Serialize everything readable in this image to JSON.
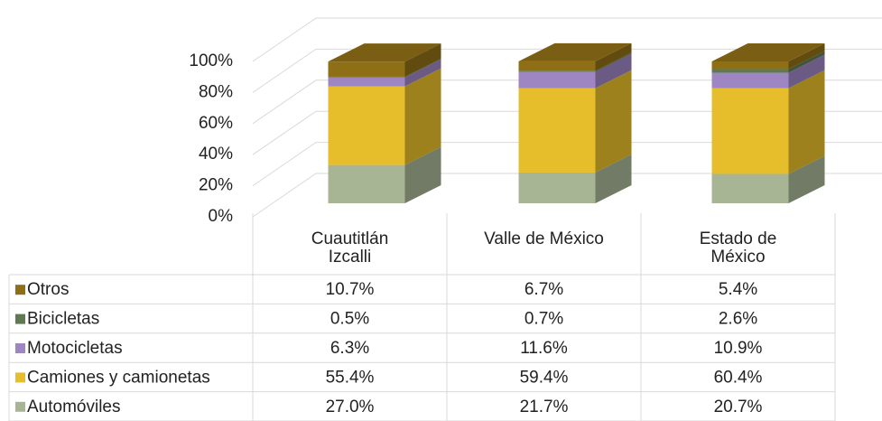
{
  "chart_data": {
    "type": "bar3d_stacked",
    "categories": [
      "Cuautitlán Izcalli",
      "Valle de México",
      "Estado de México"
    ],
    "series": [
      {
        "name": "Automóviles",
        "color": "#a8b594",
        "values": [
          27.0,
          21.7,
          20.7
        ],
        "value_labels": [
          "27.0%",
          "21.7%",
          "20.7%"
        ]
      },
      {
        "name": "Camiones y camionetas",
        "color": "#e6bd2a",
        "values": [
          55.4,
          59.4,
          60.4
        ],
        "value_labels": [
          "55.4%",
          "59.4%",
          "60.4%"
        ]
      },
      {
        "name": "Motocicletas",
        "color": "#9d86c2",
        "values": [
          6.3,
          11.6,
          10.9
        ],
        "value_labels": [
          "6.3%",
          "11.6%",
          "10.9%"
        ]
      },
      {
        "name": "Bicicletas",
        "color": "#5f7a52",
        "values": [
          0.5,
          0.7,
          2.6
        ],
        "value_labels": [
          "0.5%",
          "0.7%",
          "2.6%"
        ]
      },
      {
        "name": "Otros",
        "color": "#8e6f16",
        "values": [
          10.7,
          6.7,
          5.4
        ],
        "value_labels": [
          "10.7%",
          "6.7%",
          "5.4%"
        ]
      }
    ],
    "ylim": [
      0,
      100
    ],
    "yticks": [
      {
        "value": 0,
        "label": "0%"
      },
      {
        "value": 20,
        "label": "20%"
      },
      {
        "value": 40,
        "label": "40%"
      },
      {
        "value": 60,
        "label": "60%"
      },
      {
        "value": 80,
        "label": "80%"
      },
      {
        "value": 100,
        "label": "100%"
      }
    ],
    "grid": true
  }
}
